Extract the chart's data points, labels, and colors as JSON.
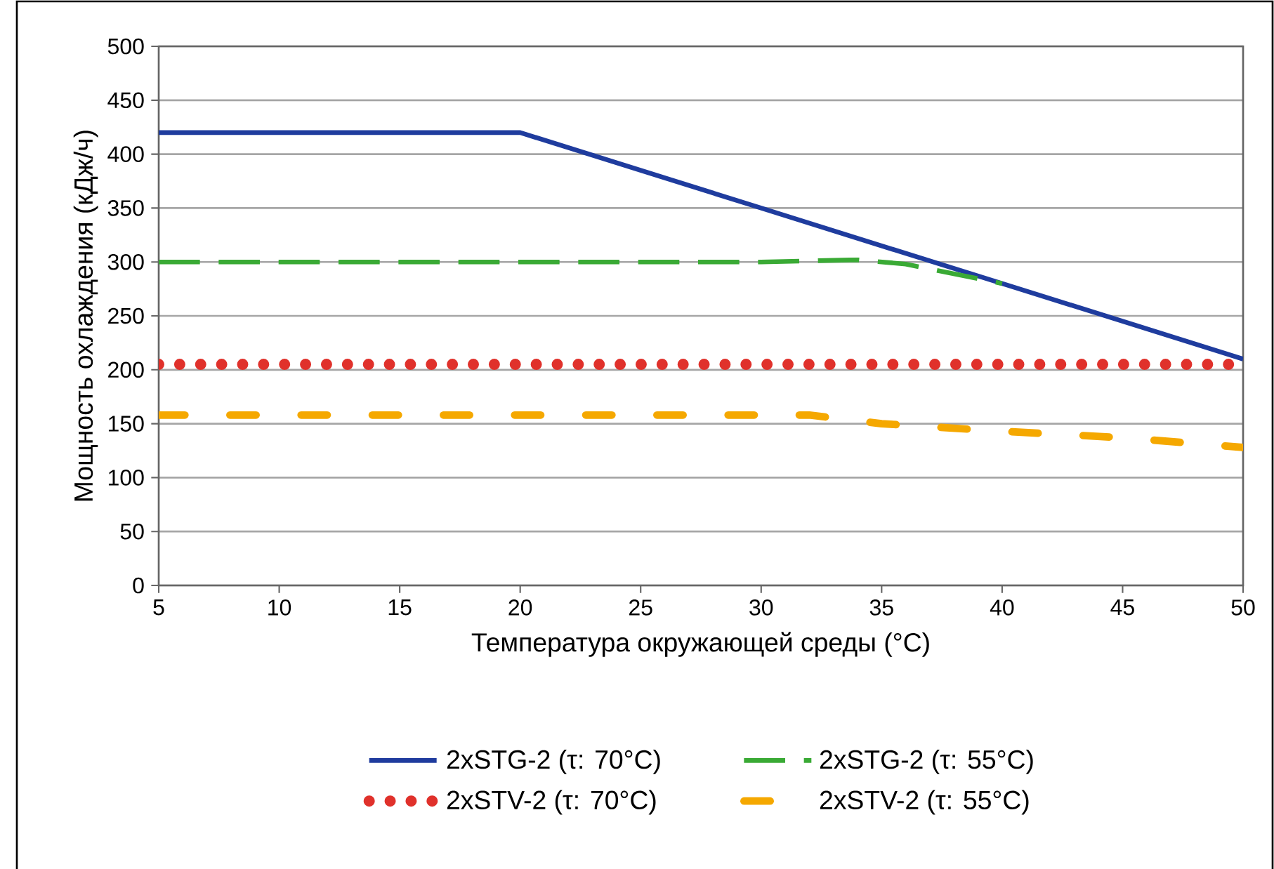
{
  "chart_data": {
    "type": "line",
    "xlabel": "Температура окружающей среды (°C)",
    "ylabel": "Мощность охлаждения (кДж/ч)",
    "xlim": [
      5,
      50
    ],
    "xticks": [
      5,
      10,
      15,
      20,
      25,
      30,
      35,
      40,
      45,
      50
    ],
    "ylim": [
      0,
      500
    ],
    "yticks": [
      0,
      50,
      100,
      150,
      200,
      250,
      300,
      350,
      400,
      450,
      500
    ],
    "grid": "y",
    "legend": "bottom",
    "marker": "none",
    "series": [
      {
        "name": "2xSTG-2 (τ: 70°C)",
        "color": "#1f3c9e",
        "line_style": "solid",
        "x": [
          5,
          20,
          30,
          40,
          50
        ],
        "values": [
          420,
          420,
          350,
          280,
          210
        ]
      },
      {
        "name": "2xSTG-2 (τ: 55°C)",
        "color": "#3aaa35",
        "line_style": "dashed",
        "x": [
          5,
          30,
          34,
          36,
          40
        ],
        "values": [
          300,
          300,
          302,
          298,
          280
        ]
      },
      {
        "name": "2xSTV-2 (τ: 70°C)",
        "color": "#e0312b",
        "line_style": "dotted",
        "x": [
          5,
          50
        ],
        "values": [
          205,
          205
        ]
      },
      {
        "name": "2xSTV-2 (τ: 55°C)",
        "color": "#f5a800",
        "line_style": "dashdot",
        "x": [
          5,
          20,
          32,
          35,
          40,
          45,
          50
        ],
        "values": [
          158,
          158,
          158,
          150,
          143,
          137,
          128
        ]
      }
    ]
  }
}
